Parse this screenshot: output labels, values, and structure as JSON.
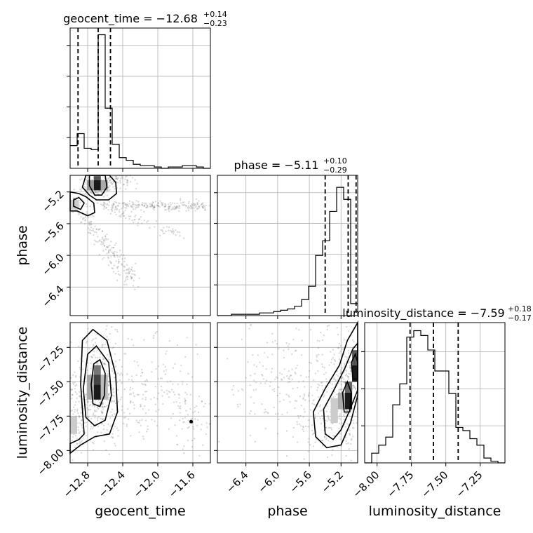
{
  "chart_data": {
    "type": "corner",
    "parameters": [
      {
        "name": "geocent_time",
        "median": -12.68,
        "plus": "+0.14",
        "minus": "−0.23",
        "title_main": "geocent_time = −12.68"
      },
      {
        "name": "phase",
        "median": -5.11,
        "plus": "+0.10",
        "minus": "−0.29",
        "title_main": "phase = −5.11"
      },
      {
        "name": "luminosity_distance",
        "median": -7.59,
        "plus": "+0.18",
        "minus": "−0.17",
        "title_main": "luminosity_distance = −7.59"
      }
    ],
    "ranges": {
      "geocent_time": [
        -13.0,
        -11.4
      ],
      "phase": [
        -6.76,
        -4.99
      ],
      "luminosity_distance": [
        -8.09,
        -7.07
      ]
    },
    "ticks": {
      "geocent_time": [
        -12.8,
        -12.4,
        -12.0,
        -11.6
      ],
      "phase_x": [
        -6.4,
        -6.0,
        -5.6,
        -5.2
      ],
      "phase_y": [
        -5.2,
        -5.6,
        -6.0,
        -6.4
      ],
      "luminosity_distance_x": [
        -8.0,
        -7.75,
        -7.5,
        -7.25
      ],
      "luminosity_distance_y": [
        -7.25,
        -7.5,
        -7.75,
        -8.0
      ]
    },
    "tick_labels": {
      "geocent_time": [
        "−12.8",
        "−12.4",
        "−12.0",
        "−11.6"
      ],
      "phase_x": [
        "−6.4",
        "−6.0",
        "−5.6",
        "−5.2"
      ],
      "phase_y": [
        "−5.2",
        "−5.6",
        "−6.0",
        "−6.4"
      ],
      "luminosity_distance_x": [
        "−8.00",
        "−7.75",
        "−7.50",
        "−7.25"
      ],
      "luminosity_distance_y": [
        "−7.25",
        "−7.50",
        "−7.75",
        "−8.00"
      ]
    },
    "quantile_lines": {
      "geocent_time": [
        -12.91,
        -12.68,
        -12.54
      ],
      "phase": [
        -5.4,
        -5.11,
        -5.01
      ],
      "luminosity_distance": [
        -7.76,
        -7.59,
        -7.41
      ]
    },
    "histograms": {
      "geocent_time": {
        "edges_start": -13.0,
        "bin_width": 0.08,
        "counts": [
          0.17,
          0.26,
          0.15,
          0.14,
          1.0,
          0.45,
          0.18,
          0.08,
          0.06,
          0.03,
          0.02,
          0.02,
          0.01,
          0.0,
          0.01,
          0.01,
          0.02,
          0.02,
          0.01,
          0.0
        ]
      },
      "phase": {
        "edges_start": -6.76,
        "bin_width": 0.0885,
        "counts": [
          0.0,
          0.0,
          0.01,
          0.01,
          0.01,
          0.01,
          0.02,
          0.02,
          0.03,
          0.04,
          0.05,
          0.07,
          0.12,
          0.22,
          0.45,
          0.56,
          0.78,
          0.96,
          0.87,
          0.09
        ]
      },
      "luminosity_distance": {
        "edges_start": -8.09,
        "bin_width": 0.051,
        "counts": [
          0.0,
          0.06,
          0.11,
          0.16,
          0.36,
          0.49,
          0.78,
          0.82,
          0.79,
          0.7,
          0.57,
          0.57,
          0.43,
          0.22,
          0.2,
          0.15,
          0.11,
          0.03,
          0.01,
          0.0
        ]
      }
    },
    "hist_ylim": {
      "geocent_time": [
        0,
        1.05
      ],
      "phase": [
        0,
        1.05
      ],
      "luminosity_distance": [
        0,
        0.87
      ]
    },
    "grid": true
  }
}
